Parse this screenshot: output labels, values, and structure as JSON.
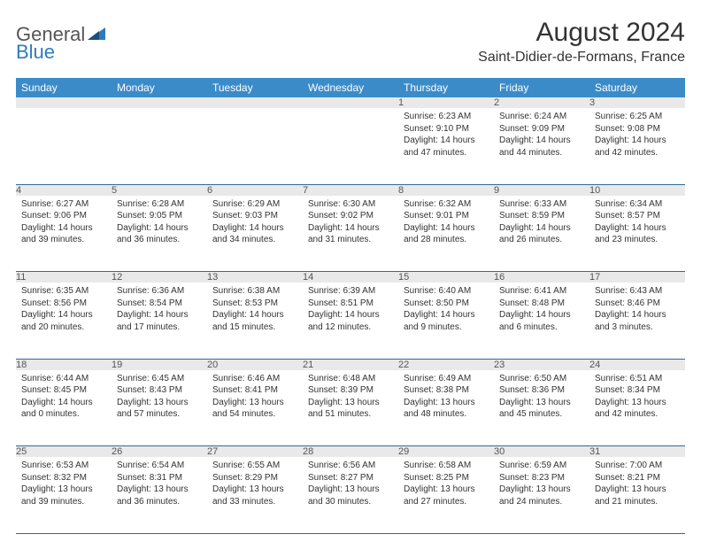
{
  "logo": {
    "text_general": "General",
    "text_blue": "Blue",
    "icon_color_main": "#2f7bbf",
    "icon_color_accent": "#1a4f80"
  },
  "title": "August 2024",
  "location": "Saint-Didier-de-Formans, France",
  "colors": {
    "header_bg": "#3b8bc9",
    "header_text": "#ffffff",
    "daynum_bg": "#e9e9e9",
    "row_border": "#2f6a9e",
    "text": "#333333"
  },
  "day_headers": [
    "Sunday",
    "Monday",
    "Tuesday",
    "Wednesday",
    "Thursday",
    "Friday",
    "Saturday"
  ],
  "weeks": [
    [
      null,
      null,
      null,
      null,
      {
        "n": "1",
        "sunrise": "6:23 AM",
        "sunset": "9:10 PM",
        "daylight": "14 hours and 47 minutes."
      },
      {
        "n": "2",
        "sunrise": "6:24 AM",
        "sunset": "9:09 PM",
        "daylight": "14 hours and 44 minutes."
      },
      {
        "n": "3",
        "sunrise": "6:25 AM",
        "sunset": "9:08 PM",
        "daylight": "14 hours and 42 minutes."
      }
    ],
    [
      {
        "n": "4",
        "sunrise": "6:27 AM",
        "sunset": "9:06 PM",
        "daylight": "14 hours and 39 minutes."
      },
      {
        "n": "5",
        "sunrise": "6:28 AM",
        "sunset": "9:05 PM",
        "daylight": "14 hours and 36 minutes."
      },
      {
        "n": "6",
        "sunrise": "6:29 AM",
        "sunset": "9:03 PM",
        "daylight": "14 hours and 34 minutes."
      },
      {
        "n": "7",
        "sunrise": "6:30 AM",
        "sunset": "9:02 PM",
        "daylight": "14 hours and 31 minutes."
      },
      {
        "n": "8",
        "sunrise": "6:32 AM",
        "sunset": "9:01 PM",
        "daylight": "14 hours and 28 minutes."
      },
      {
        "n": "9",
        "sunrise": "6:33 AM",
        "sunset": "8:59 PM",
        "daylight": "14 hours and 26 minutes."
      },
      {
        "n": "10",
        "sunrise": "6:34 AM",
        "sunset": "8:57 PM",
        "daylight": "14 hours and 23 minutes."
      }
    ],
    [
      {
        "n": "11",
        "sunrise": "6:35 AM",
        "sunset": "8:56 PM",
        "daylight": "14 hours and 20 minutes."
      },
      {
        "n": "12",
        "sunrise": "6:36 AM",
        "sunset": "8:54 PM",
        "daylight": "14 hours and 17 minutes."
      },
      {
        "n": "13",
        "sunrise": "6:38 AM",
        "sunset": "8:53 PM",
        "daylight": "14 hours and 15 minutes."
      },
      {
        "n": "14",
        "sunrise": "6:39 AM",
        "sunset": "8:51 PM",
        "daylight": "14 hours and 12 minutes."
      },
      {
        "n": "15",
        "sunrise": "6:40 AM",
        "sunset": "8:50 PM",
        "daylight": "14 hours and 9 minutes."
      },
      {
        "n": "16",
        "sunrise": "6:41 AM",
        "sunset": "8:48 PM",
        "daylight": "14 hours and 6 minutes."
      },
      {
        "n": "17",
        "sunrise": "6:43 AM",
        "sunset": "8:46 PM",
        "daylight": "14 hours and 3 minutes."
      }
    ],
    [
      {
        "n": "18",
        "sunrise": "6:44 AM",
        "sunset": "8:45 PM",
        "daylight": "14 hours and 0 minutes."
      },
      {
        "n": "19",
        "sunrise": "6:45 AM",
        "sunset": "8:43 PM",
        "daylight": "13 hours and 57 minutes."
      },
      {
        "n": "20",
        "sunrise": "6:46 AM",
        "sunset": "8:41 PM",
        "daylight": "13 hours and 54 minutes."
      },
      {
        "n": "21",
        "sunrise": "6:48 AM",
        "sunset": "8:39 PM",
        "daylight": "13 hours and 51 minutes."
      },
      {
        "n": "22",
        "sunrise": "6:49 AM",
        "sunset": "8:38 PM",
        "daylight": "13 hours and 48 minutes."
      },
      {
        "n": "23",
        "sunrise": "6:50 AM",
        "sunset": "8:36 PM",
        "daylight": "13 hours and 45 minutes."
      },
      {
        "n": "24",
        "sunrise": "6:51 AM",
        "sunset": "8:34 PM",
        "daylight": "13 hours and 42 minutes."
      }
    ],
    [
      {
        "n": "25",
        "sunrise": "6:53 AM",
        "sunset": "8:32 PM",
        "daylight": "13 hours and 39 minutes."
      },
      {
        "n": "26",
        "sunrise": "6:54 AM",
        "sunset": "8:31 PM",
        "daylight": "13 hours and 36 minutes."
      },
      {
        "n": "27",
        "sunrise": "6:55 AM",
        "sunset": "8:29 PM",
        "daylight": "13 hours and 33 minutes."
      },
      {
        "n": "28",
        "sunrise": "6:56 AM",
        "sunset": "8:27 PM",
        "daylight": "13 hours and 30 minutes."
      },
      {
        "n": "29",
        "sunrise": "6:58 AM",
        "sunset": "8:25 PM",
        "daylight": "13 hours and 27 minutes."
      },
      {
        "n": "30",
        "sunrise": "6:59 AM",
        "sunset": "8:23 PM",
        "daylight": "13 hours and 24 minutes."
      },
      {
        "n": "31",
        "sunrise": "7:00 AM",
        "sunset": "8:21 PM",
        "daylight": "13 hours and 21 minutes."
      }
    ]
  ],
  "labels": {
    "sunrise_prefix": "Sunrise: ",
    "sunset_prefix": "Sunset: ",
    "daylight_prefix": "Daylight: "
  }
}
